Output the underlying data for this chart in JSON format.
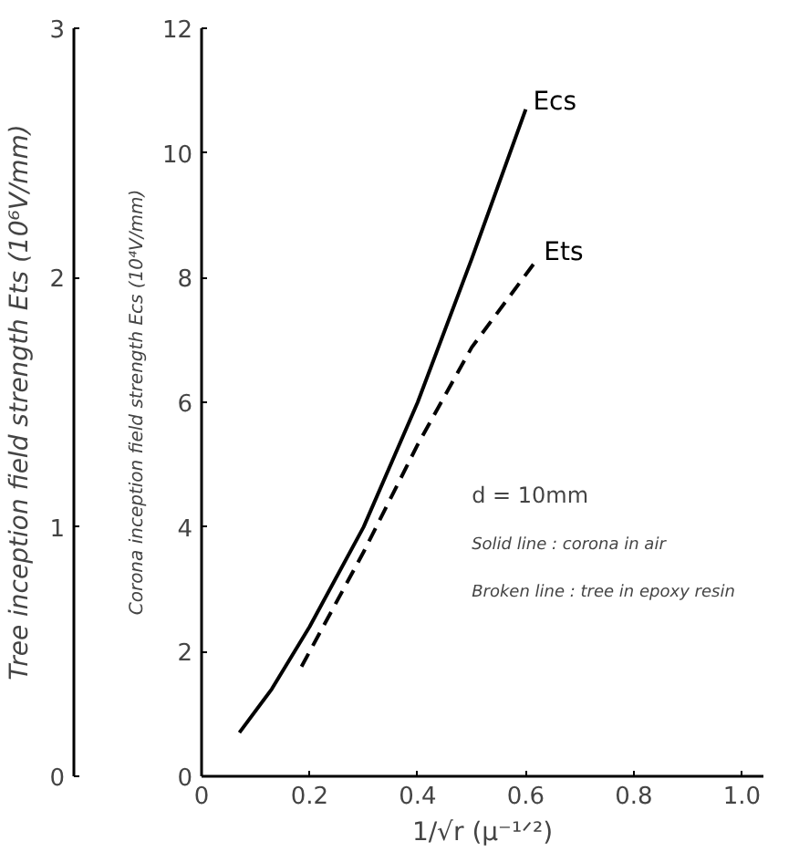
{
  "chart_data": {
    "type": "line",
    "xlabel": "1/√r (μ⁻¹ᐟ²)",
    "ylabel": "Corona inception field strength Ecs (10⁴V/mm)",
    "y2label": "Tree inception field strength Ets (10⁶V/mm)",
    "xlim": [
      0,
      1.04
    ],
    "xticks": [
      0,
      0.2,
      0.4,
      0.6,
      0.8,
      {
        "value": 1,
        "label": "1.0"
      }
    ],
    "ylim": [
      0,
      12
    ],
    "yticks": [
      0,
      2,
      4,
      6,
      8,
      10,
      12
    ],
    "y2lim": [
      0,
      3
    ],
    "y2ticks": [
      0,
      1,
      2,
      3
    ],
    "grid": false,
    "marker": "none",
    "series": [
      {
        "name": "Ecs",
        "color": "#000000",
        "line_style": "solid",
        "x": [
          0.07,
          0.13,
          0.2,
          0.3,
          0.4,
          0.5,
          0.6
        ],
        "values": [
          0.7,
          1.4,
          2.4,
          4.0,
          6.0,
          8.3,
          10.7
        ]
      },
      {
        "name": "Ets",
        "color": "#000000",
        "line_style": "dashed",
        "axis": "y2",
        "x": [
          0.185,
          0.3,
          0.4,
          0.5,
          0.62
        ],
        "values": [
          0.44,
          0.9,
          1.33,
          1.72,
          2.07
        ]
      }
    ],
    "annotations": [
      "d = 10mm",
      "Solid line   : corona in air",
      "Broken line : tree in epoxy resin"
    ]
  }
}
